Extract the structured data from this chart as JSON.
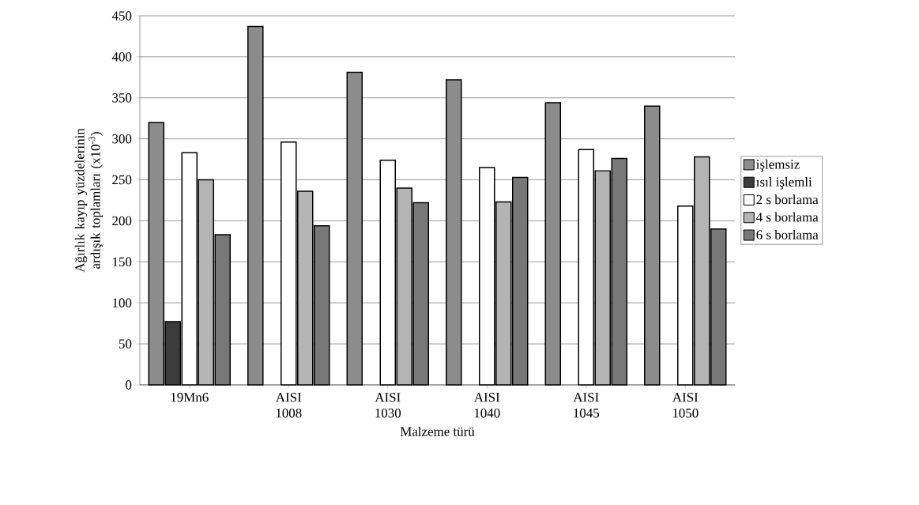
{
  "chart_data": {
    "type": "bar",
    "xlabel": "Malzeme türü",
    "ylabel": "Ağırlık kayıp yüzdelerinin ardışık toplamları (x10$^{-3}$)",
    "categories": [
      "19Mn6",
      "AISI 1008",
      "AISI 1030",
      "AISI 1040",
      "AISI 1045",
      "AISI 1050"
    ],
    "series": [
      {
        "name": "işlemsiz",
        "color": "#8c8c8c",
        "values": [
          320,
          437,
          381,
          372,
          344,
          340
        ]
      },
      {
        "name": "ısıl işlemli",
        "color": "#3c3c3c",
        "values": [
          77,
          null,
          null,
          null,
          null,
          null
        ]
      },
      {
        "name": "2 s borlama",
        "color": "#ffffff",
        "values": [
          283,
          296,
          274,
          265,
          287,
          218
        ]
      },
      {
        "name": "4 s borlama",
        "color": "#b4b4b4",
        "values": [
          250,
          236,
          240,
          223,
          261,
          278
        ]
      },
      {
        "name": "6 s borlama",
        "color": "#787878",
        "values": [
          183,
          194,
          222,
          253,
          276,
          190
        ]
      }
    ],
    "ylim": [
      0,
      450
    ],
    "yticks": [
      0,
      50,
      100,
      150,
      200,
      250,
      300,
      350,
      400,
      450
    ],
    "grid": "y",
    "legend": "right"
  }
}
